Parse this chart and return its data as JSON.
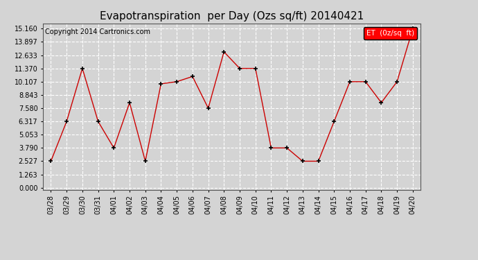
{
  "title": "Evapotranspiration  per Day (Ozs sq/ft) 20140421",
  "copyright": "Copyright 2014 Cartronics.com",
  "legend_label": "ET  (0z/sq  ft)",
  "x_labels": [
    "03/28",
    "03/29",
    "03/30",
    "03/31",
    "04/01",
    "04/02",
    "04/03",
    "04/04",
    "04/05",
    "04/06",
    "04/07",
    "04/08",
    "04/09",
    "04/10",
    "04/11",
    "04/12",
    "04/13",
    "04/14",
    "04/15",
    "04/16",
    "04/17",
    "04/18",
    "04/19",
    "04/20"
  ],
  "y_values": [
    2.527,
    6.317,
    11.37,
    6.317,
    3.79,
    8.106,
    2.527,
    9.9,
    10.107,
    10.6,
    7.58,
    12.95,
    11.37,
    11.37,
    3.79,
    3.79,
    2.527,
    2.527,
    6.317,
    10.107,
    10.107,
    8.106,
    10.107,
    15.16
  ],
  "line_color": "#cc0000",
  "marker_color": "#000000",
  "background_color": "#d4d4d4",
  "plot_bg_color": "#d4d4d4",
  "grid_color": "#ffffff",
  "ytick_values": [
    0.0,
    1.263,
    2.527,
    3.79,
    5.053,
    6.317,
    7.58,
    8.843,
    10.107,
    11.37,
    12.633,
    13.897,
    15.16
  ],
  "ymin": 0.0,
  "ymax": 15.16,
  "title_fontsize": 11,
  "copyright_fontsize": 7,
  "legend_fontsize": 7.5,
  "tick_fontsize": 7,
  "ytick_fontsize": 7
}
